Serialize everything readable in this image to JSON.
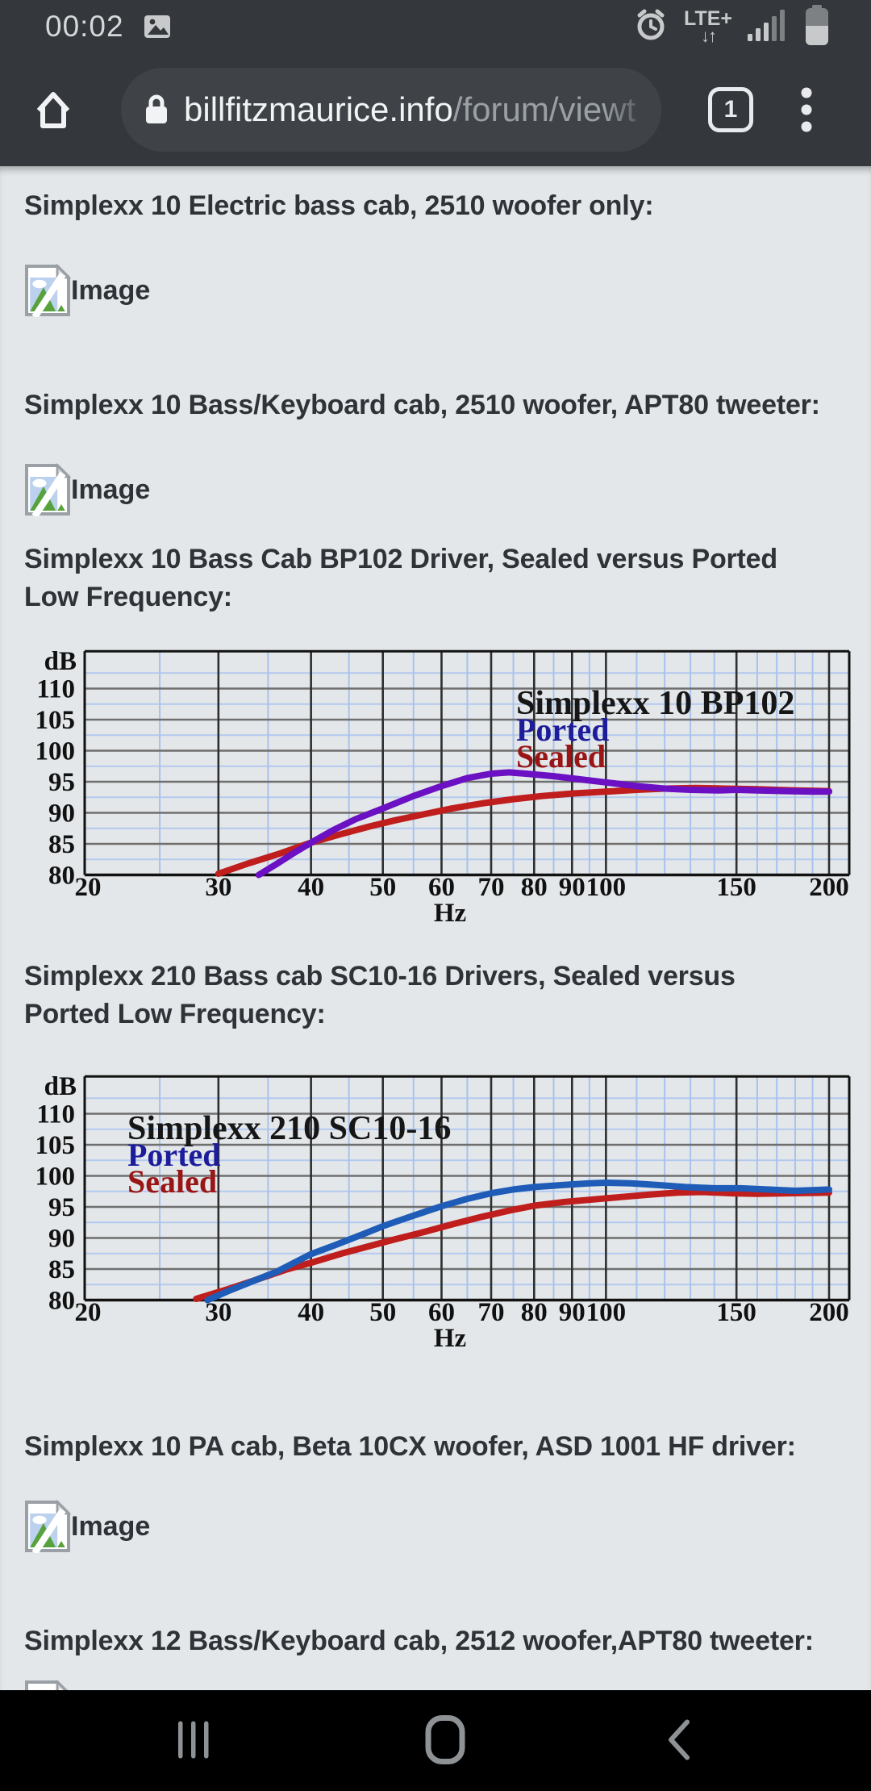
{
  "status_bar": {
    "time": "00:02",
    "network_label": "LTE+",
    "network_arrows": "↓↑"
  },
  "browser_bar": {
    "url_host": "billfitzmaurice.info",
    "url_path": "/forum/viewt",
    "tab_count": "1"
  },
  "post": {
    "sections": [
      {
        "type": "heading",
        "text": "Simplexx 10 Electric bass cab, 2510 woofer only:"
      },
      {
        "type": "image_placeholder",
        "label": "Image"
      },
      {
        "type": "heading",
        "text": "Simplexx 10 Bass/Keyboard cab, 2510 woofer, APT80 tweeter:"
      },
      {
        "type": "image_placeholder",
        "label": "Image"
      },
      {
        "type": "heading",
        "text": "Simplexx 10 Bass Cab BP102 Driver, Sealed versus Ported Low Frequency:"
      },
      {
        "type": "chart",
        "chart_index": 0
      },
      {
        "type": "heading",
        "text": "Simplexx 210 Bass cab SC10-16 Drivers, Sealed versus Ported Low Frequency:"
      },
      {
        "type": "chart",
        "chart_index": 1
      },
      {
        "type": "heading",
        "text": "Simplexx 10 PA cab, Beta 10CX woofer, ASD 1001 HF driver:"
      },
      {
        "type": "image_placeholder",
        "label": "Image"
      },
      {
        "type": "heading",
        "text": "Simplexx 12 Bass/Keyboard cab, 2512 woofer,APT80 tweeter:"
      },
      {
        "type": "image_placeholder_partial",
        "label": "Image"
      }
    ]
  },
  "chart_data": [
    {
      "type": "line",
      "title": "Simplexx 10 BP102",
      "xlabel": "Hz",
      "ylabel": "dB",
      "x_scale": "log",
      "xlim": [
        20,
        210
      ],
      "ylim": [
        80,
        116
      ],
      "x_ticks": [
        20,
        30,
        40,
        50,
        60,
        70,
        80,
        90,
        100,
        150,
        200
      ],
      "x_minor": [
        25,
        35,
        45,
        55,
        65,
        75,
        85,
        95,
        110,
        120,
        130,
        140,
        160,
        170,
        180,
        190
      ],
      "y_ticks": [
        80,
        85,
        90,
        95,
        100,
        105,
        110
      ],
      "grid": true,
      "legend": {
        "position": "right",
        "lines": [
          {
            "text": "Simplexx 10 BP102",
            "color": "#161616"
          },
          {
            "text": "Ported",
            "color": "#1d1d9b"
          },
          {
            "text": "Sealed",
            "color": "#9a1515"
          }
        ]
      },
      "series": [
        {
          "name": "Sealed",
          "color": "#c01d1d",
          "points": [
            [
              30,
              80.2
            ],
            [
              33,
              81.9
            ],
            [
              36,
              83.3
            ],
            [
              40,
              85.2
            ],
            [
              44,
              86.6
            ],
            [
              48,
              87.8
            ],
            [
              52,
              88.8
            ],
            [
              57,
              89.8
            ],
            [
              62,
              90.7
            ],
            [
              68,
              91.5
            ],
            [
              75,
              92.2
            ],
            [
              82,
              92.7
            ],
            [
              90,
              93.1
            ],
            [
              100,
              93.4
            ],
            [
              110,
              93.7
            ],
            [
              120,
              93.9
            ],
            [
              132,
              94.0
            ],
            [
              145,
              93.9
            ],
            [
              160,
              93.8
            ],
            [
              180,
              93.6
            ],
            [
              200,
              93.5
            ]
          ]
        },
        {
          "name": "Ported",
          "color": "#6b10c2",
          "points": [
            [
              34,
              80.0
            ],
            [
              36,
              81.8
            ],
            [
              38,
              83.6
            ],
            [
              40,
              85.2
            ],
            [
              43,
              87.3
            ],
            [
              46,
              89.0
            ],
            [
              50,
              90.7
            ],
            [
              55,
              92.7
            ],
            [
              60,
              94.3
            ],
            [
              65,
              95.6
            ],
            [
              70,
              96.3
            ],
            [
              74,
              96.5
            ],
            [
              78,
              96.3
            ],
            [
              85,
              95.9
            ],
            [
              92,
              95.4
            ],
            [
              100,
              94.9
            ],
            [
              110,
              94.3
            ],
            [
              120,
              93.9
            ],
            [
              130,
              93.7
            ],
            [
              142,
              93.6
            ],
            [
              150,
              93.7
            ],
            [
              160,
              93.6
            ],
            [
              175,
              93.5
            ],
            [
              190,
              93.4
            ],
            [
              200,
              93.4
            ]
          ]
        }
      ]
    },
    {
      "type": "line",
      "title": "Simplexx 210 SC10-16",
      "xlabel": "Hz",
      "ylabel": "dB",
      "x_scale": "log",
      "xlim": [
        20,
        210
      ],
      "ylim": [
        80,
        116
      ],
      "x_ticks": [
        20,
        30,
        40,
        50,
        60,
        70,
        80,
        90,
        100,
        150,
        200
      ],
      "x_minor": [
        25,
        35,
        45,
        55,
        65,
        75,
        85,
        95,
        110,
        120,
        130,
        140,
        160,
        170,
        180,
        190
      ],
      "y_ticks": [
        80,
        85,
        90,
        95,
        100,
        105,
        110
      ],
      "grid": true,
      "legend": {
        "position": "left",
        "lines": [
          {
            "text": "Simplexx 210 SC10-16",
            "color": "#161616"
          },
          {
            "text": "Ported",
            "color": "#1d1d9b"
          },
          {
            "text": "Sealed",
            "color": "#9a1515"
          }
        ]
      },
      "series": [
        {
          "name": "Sealed",
          "color": "#c01d1d",
          "points": [
            [
              28,
              80.2
            ],
            [
              31,
              81.8
            ],
            [
              34,
              83.4
            ],
            [
              37,
              84.9
            ],
            [
              40,
              86.0
            ],
            [
              44,
              87.5
            ],
            [
              48,
              88.7
            ],
            [
              52,
              89.8
            ],
            [
              57,
              91.0
            ],
            [
              62,
              92.2
            ],
            [
              68,
              93.4
            ],
            [
              74,
              94.4
            ],
            [
              80,
              95.2
            ],
            [
              88,
              95.8
            ],
            [
              96,
              96.2
            ],
            [
              105,
              96.6
            ],
            [
              115,
              97.0
            ],
            [
              125,
              97.3
            ],
            [
              135,
              97.4
            ],
            [
              148,
              97.2
            ],
            [
              160,
              97.1
            ],
            [
              175,
              97.2
            ],
            [
              200,
              97.3
            ]
          ]
        },
        {
          "name": "Ported",
          "color": "#1f5cb8",
          "points": [
            [
              29,
              80.0
            ],
            [
              31,
              81.5
            ],
            [
              33,
              82.8
            ],
            [
              36,
              84.6
            ],
            [
              40,
              87.4
            ],
            [
              43,
              88.8
            ],
            [
              47,
              90.6
            ],
            [
              50,
              91.9
            ],
            [
              55,
              93.6
            ],
            [
              60,
              95.1
            ],
            [
              65,
              96.3
            ],
            [
              70,
              97.2
            ],
            [
              75,
              97.8
            ],
            [
              80,
              98.2
            ],
            [
              87,
              98.5
            ],
            [
              95,
              98.8
            ],
            [
              100,
              98.9
            ],
            [
              108,
              98.8
            ],
            [
              118,
              98.5
            ],
            [
              128,
              98.2
            ],
            [
              140,
              98.0
            ],
            [
              152,
              98.0
            ],
            [
              165,
              97.8
            ],
            [
              180,
              97.6
            ],
            [
              200,
              97.8
            ]
          ]
        }
      ]
    }
  ],
  "nav_bar": {
    "buttons": [
      "recents",
      "home",
      "back"
    ]
  }
}
